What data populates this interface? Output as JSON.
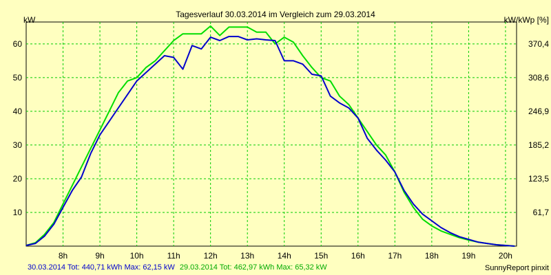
{
  "chart_data": {
    "type": "line",
    "title": "Tagesverlauf 30.03.2014 im Vergleich zum 29.03.2014",
    "ylabel_left": "kW",
    "ylabel_right": "kW/kWp [%]",
    "xlim": [
      7.0,
      20.3
    ],
    "ylim": [
      0,
      66.5
    ],
    "x_ticks": [
      8,
      9,
      10,
      11,
      12,
      13,
      14,
      15,
      16,
      17,
      18,
      19,
      20
    ],
    "x_tick_labels": [
      "8h",
      "9h",
      "10h",
      "11h",
      "12h",
      "13h",
      "14h",
      "15h",
      "16h",
      "17h",
      "18h",
      "19h",
      "20h"
    ],
    "y_ticks_left": [
      10,
      20,
      30,
      40,
      50,
      60
    ],
    "y_tick_labels_left": [
      "10",
      "20",
      "30",
      "40",
      "50",
      "60"
    ],
    "y_ticks_right_positions": [
      10,
      20,
      30,
      40,
      50,
      60
    ],
    "y_tick_labels_right": [
      "61,7",
      "123,5",
      "185,2",
      "246,9",
      "308,6",
      "370,4"
    ],
    "grid": true,
    "colors": {
      "background": "#ffffc0",
      "plot_area": "#ffffc0",
      "grid": "#00cc00",
      "series_30": "#0000cc",
      "series_29": "#00dd00",
      "legend_30": "#0000cc",
      "legend_29": "#00aa00"
    },
    "series": [
      {
        "key": "s30",
        "color": "#0000cc",
        "x": [
          7.0,
          7.25,
          7.5,
          7.75,
          8.0,
          8.25,
          8.5,
          8.75,
          9.0,
          9.25,
          9.5,
          9.75,
          10.0,
          10.25,
          10.5,
          10.75,
          11.0,
          11.25,
          11.5,
          11.75,
          12.0,
          12.25,
          12.5,
          12.75,
          13.0,
          13.25,
          13.5,
          13.75,
          14.0,
          14.25,
          14.5,
          14.75,
          15.0,
          15.25,
          15.5,
          15.75,
          16.0,
          16.25,
          16.5,
          16.75,
          17.0,
          17.25,
          17.5,
          17.75,
          18.0,
          18.25,
          18.5,
          18.75,
          19.0,
          19.25,
          19.5,
          19.75,
          20.0,
          20.25
        ],
        "values": [
          0.2,
          0.8,
          3.0,
          6.5,
          11.5,
          16.5,
          20.5,
          27.5,
          33.0,
          37.0,
          41.0,
          45.0,
          49.0,
          51.5,
          54.0,
          56.5,
          56.0,
          52.5,
          59.5,
          58.5,
          62.0,
          61.0,
          62.2,
          62.2,
          61.2,
          61.5,
          61.2,
          61.0,
          55.0,
          55.0,
          54.0,
          51.0,
          50.5,
          44.5,
          42.5,
          41.0,
          38.0,
          32.0,
          28.5,
          25.5,
          22.0,
          16.5,
          12.5,
          9.5,
          7.5,
          5.5,
          4.0,
          2.8,
          2.0,
          1.2,
          0.8,
          0.4,
          0.2,
          0.0
        ]
      },
      {
        "key": "s29",
        "color": "#00dd00",
        "x": [
          7.0,
          7.25,
          7.5,
          7.75,
          8.0,
          8.25,
          8.5,
          8.75,
          9.0,
          9.25,
          9.5,
          9.75,
          10.0,
          10.25,
          10.5,
          10.75,
          11.0,
          11.25,
          11.5,
          11.75,
          12.0,
          12.25,
          12.5,
          12.75,
          13.0,
          13.25,
          13.5,
          13.75,
          14.0,
          14.25,
          14.5,
          14.75,
          15.0,
          15.25,
          15.5,
          15.75,
          16.0,
          16.25,
          16.5,
          16.75,
          17.0,
          17.25,
          17.5,
          17.75,
          18.0,
          18.25,
          18.5,
          18.75,
          19.0,
          19.25,
          19.5,
          19.75,
          20.0,
          20.25
        ],
        "values": [
          0.2,
          1.0,
          3.5,
          7.0,
          12.5,
          18.0,
          23.5,
          29.0,
          34.5,
          40.0,
          45.5,
          49.0,
          50.0,
          53.0,
          55.0,
          58.0,
          61.0,
          63.0,
          63.0,
          63.0,
          65.3,
          62.5,
          65.0,
          65.0,
          65.0,
          63.5,
          63.5,
          60.0,
          62.0,
          60.5,
          56.5,
          53.0,
          50.0,
          49.0,
          44.5,
          42.0,
          38.0,
          34.0,
          30.0,
          27.0,
          22.0,
          16.0,
          11.5,
          8.0,
          6.0,
          4.5,
          3.5,
          2.5,
          1.8,
          1.2,
          0.8,
          0.4,
          0.2,
          0.0
        ]
      }
    ]
  },
  "footer": {
    "line_30": "30.03.2014 Tot: 440,71 kWh Max: 62,15 kW",
    "line_29": "29.03.2014 Tot: 462,97 kWh Max: 65,32 kW"
  },
  "credit": "SunnyReport pinxit"
}
